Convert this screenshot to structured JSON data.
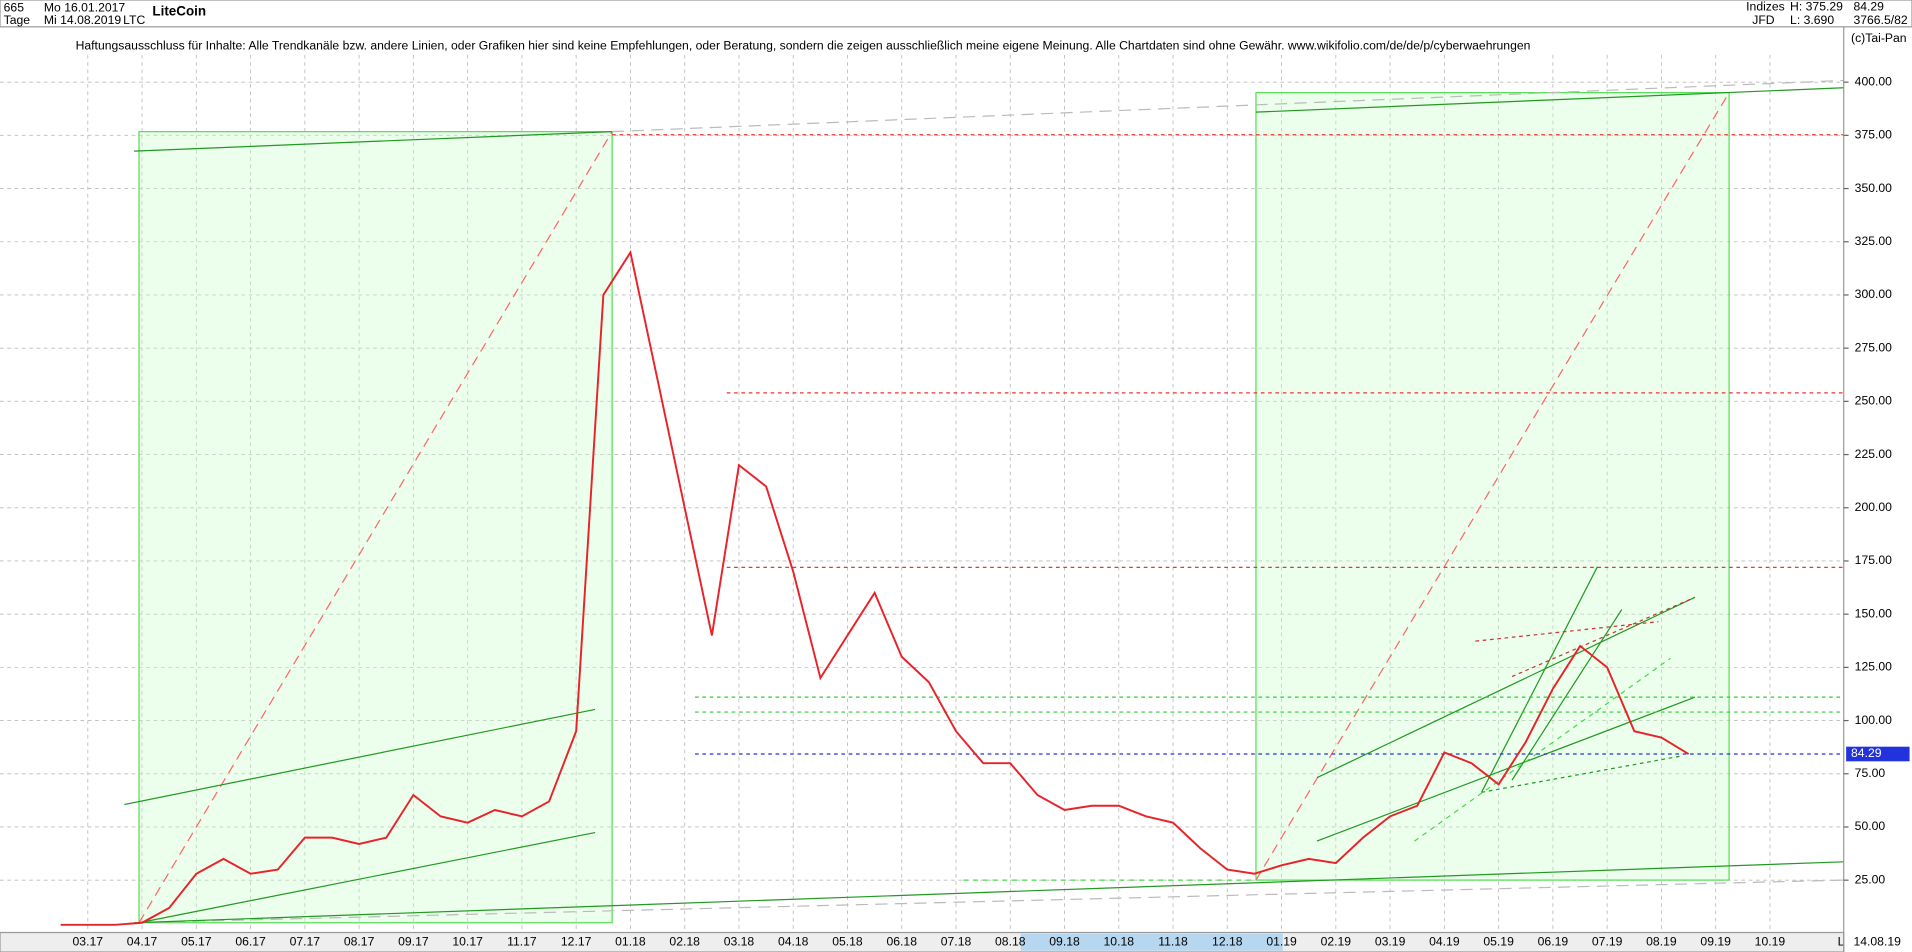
{
  "header": {
    "count": "665",
    "period": "Tage",
    "from": "Mo 16.01.2017",
    "to": "Mi 14.08.2019",
    "symbol": "LTC",
    "name": "LiteCoin",
    "market": "Indizes",
    "broker": "JFD",
    "high": "H: 375.29",
    "low": "L: 3.690",
    "volume": "3766.5/82",
    "copyright": "(c)Tai-Pan",
    "disclaimer": "Haftungsausschluss für Inhalte: Alle Trendkanäle bzw. andere Linien, oder Grafiken hier sind keine Empfehlungen, oder Beratung, sondern die zeigen ausschließlich meine eigene Meinung. Alle Chartdaten sind ohne Gewähr.  www.wikifolio.com/de/de/p/cyberwaehrungen",
    "last_date": "14.08.19",
    "scale_mode": "L"
  },
  "chart_data": {
    "type": "line",
    "categories": [
      null,
      "03.17",
      null,
      "04.17",
      null,
      "05.17",
      null,
      "06.17",
      null,
      "07.17",
      null,
      "08.17",
      null,
      "09.17",
      null,
      "10.17",
      null,
      "11.17",
      null,
      "12.17",
      null,
      "01.18",
      null,
      "02.18",
      null,
      "03.18",
      null,
      "04.18",
      null,
      "05.18",
      null,
      "06.18",
      null,
      "07.18",
      null,
      "08.18",
      null,
      "09.18",
      null,
      "10.18",
      null,
      "11.18",
      null,
      "12.18",
      null,
      "01.19",
      null,
      "02.19",
      null,
      "03.19",
      null,
      "04.19",
      null,
      "05.19",
      null,
      "06.19",
      null,
      "07.19",
      null,
      "08.19",
      null,
      "09.19",
      null,
      "10.19"
    ],
    "series": [
      {
        "name": "LTC",
        "color": "#e8232a",
        "values": [
          4,
          4,
          4,
          5,
          12,
          28,
          35,
          28,
          30,
          45,
          45,
          42,
          45,
          65,
          55,
          52,
          58,
          55,
          62,
          95,
          300,
          320,
          260,
          200,
          140,
          220,
          210,
          170,
          120,
          140,
          160,
          130,
          118,
          95,
          80,
          80,
          65,
          58,
          60,
          60,
          55,
          52,
          40,
          30,
          28,
          32,
          35,
          33,
          45,
          55,
          60,
          85,
          80,
          70,
          90,
          115,
          135,
          125,
          95,
          92,
          84.29,
          null,
          null,
          null
        ]
      }
    ],
    "ylim": [
      5,
      426
    ],
    "yticks": [
      {
        "value": 25,
        "label": "25.00"
      },
      {
        "value": 50,
        "label": "50.00"
      },
      {
        "value": 75,
        "label": "75.00"
      },
      {
        "value": 100,
        "label": "100.00"
      },
      {
        "value": 125,
        "label": "125.00"
      },
      {
        "value": 150,
        "label": "150.00"
      },
      {
        "value": 175,
        "label": "175.00"
      },
      {
        "value": 200,
        "label": "200.00"
      },
      {
        "value": 225,
        "label": "225.00"
      },
      {
        "value": 250,
        "label": "250.00"
      },
      {
        "value": 275,
        "label": "275.00"
      },
      {
        "value": 300,
        "label": "300.00"
      },
      {
        "value": 325,
        "label": "325.00"
      },
      {
        "value": 350,
        "label": "350.00"
      },
      {
        "value": 375,
        "label": "375.00"
      },
      {
        "value": 400,
        "label": "400.00"
      }
    ],
    "grid": true,
    "hlines": [
      {
        "value": 375.29,
        "color": "#e33"
      },
      {
        "value": 254,
        "color": "#e33"
      },
      {
        "value": 172,
        "color": "#e33"
      },
      {
        "value": 111,
        "color": "#3c3"
      },
      {
        "value": 104,
        "color": "#3c3"
      },
      {
        "value": 84.29,
        "color": "#2233dd"
      }
    ]
  }
}
